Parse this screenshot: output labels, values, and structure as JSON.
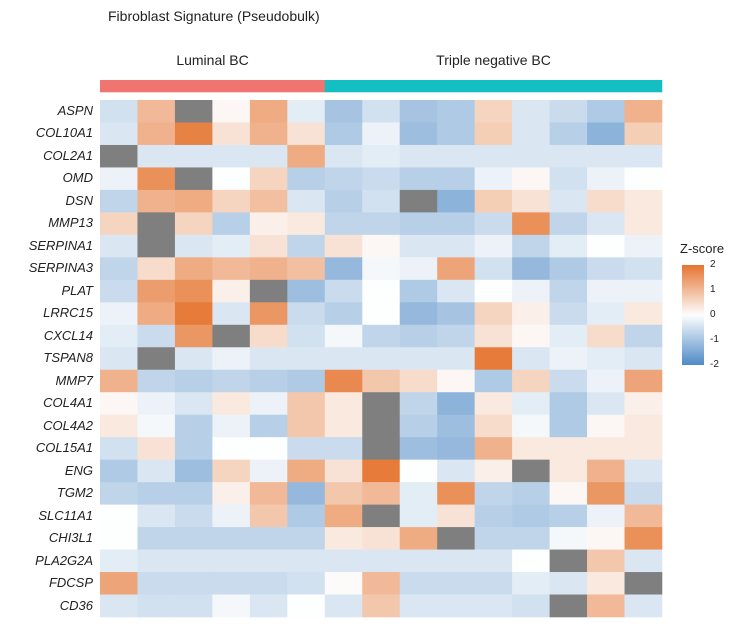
{
  "chart_data": {
    "type": "heatmap",
    "title": "Fibroblast Signature (Pseudobulk)",
    "groups": [
      {
        "name": "Luminal BC",
        "count": 6,
        "color": "#f07470"
      },
      {
        "name": "Triple negative BC",
        "count": 9,
        "color": "#14bfc4"
      }
    ],
    "rows": [
      "ASPN",
      "COL10A1",
      "COL2A1",
      "OMD",
      "DSN",
      "MMP13",
      "SERPINA1",
      "SERPINA3",
      "PLAT",
      "LRRC15",
      "CXCL14",
      "TSPAN8",
      "MMP7",
      "COL4A1",
      "COL4A2",
      "COL15A1",
      "ENG",
      "TGM2",
      "SLC11A1",
      "CHI3L1",
      "PLA2G2A",
      "FDCSP",
      "CD36"
    ],
    "values": [
      [
        -0.5,
        1.0,
        null,
        0.1,
        1.2,
        -0.3,
        -1.0,
        -0.5,
        -1.0,
        -0.9,
        0.6,
        -0.4,
        -0.6,
        -0.9,
        1.1
      ],
      [
        -0.4,
        1.1,
        1.8,
        0.4,
        1.1,
        0.4,
        -0.9,
        -0.2,
        -1.1,
        -0.9,
        0.7,
        -0.4,
        -0.8,
        -1.3,
        0.7
      ],
      [
        null,
        -0.4,
        -0.4,
        -0.4,
        -0.4,
        1.2,
        -0.4,
        -0.3,
        -0.4,
        -0.4,
        -0.4,
        -0.4,
        -0.4,
        -0.4,
        -0.4
      ],
      [
        -0.2,
        1.6,
        null,
        0.0,
        0.6,
        -0.8,
        -0.7,
        -0.6,
        -0.8,
        -0.8,
        -0.2,
        0.1,
        -0.5,
        -0.2,
        0.0
      ],
      [
        -0.7,
        1.1,
        1.2,
        0.6,
        0.9,
        -0.4,
        -0.8,
        -0.5,
        null,
        -1.3,
        0.7,
        0.4,
        -0.4,
        0.5,
        0.3
      ],
      [
        0.6,
        null,
        0.6,
        -0.8,
        0.2,
        0.3,
        -0.7,
        -0.7,
        -0.8,
        -0.8,
        -0.6,
        1.6,
        -0.7,
        -0.4,
        0.3
      ],
      [
        -0.4,
        null,
        -0.4,
        -0.3,
        0.4,
        -0.7,
        0.4,
        0.1,
        -0.4,
        -0.4,
        -0.2,
        -0.7,
        -0.3,
        0.0,
        -0.2
      ],
      [
        -0.7,
        0.5,
        1.2,
        1.0,
        1.1,
        0.9,
        -1.2,
        -0.1,
        -0.2,
        1.3,
        -0.5,
        -1.2,
        -0.9,
        -0.6,
        -0.5
      ],
      [
        -0.6,
        1.4,
        1.6,
        0.2,
        null,
        -1.1,
        -0.6,
        0.0,
        -0.9,
        -0.4,
        0.0,
        -0.2,
        -0.7,
        -0.2,
        -0.2
      ],
      [
        -0.2,
        1.2,
        1.9,
        -0.4,
        1.5,
        -0.6,
        -0.8,
        0.0,
        -1.2,
        -1.0,
        0.6,
        0.2,
        -0.6,
        -0.3,
        0.3
      ],
      [
        -0.3,
        -0.6,
        1.5,
        null,
        0.5,
        -0.5,
        -0.1,
        -0.7,
        -0.8,
        -0.7,
        0.4,
        0.1,
        -0.3,
        0.5,
        -0.7
      ],
      [
        -0.4,
        null,
        -0.4,
        -0.2,
        -0.4,
        -0.4,
        -0.4,
        -0.4,
        -0.4,
        -0.4,
        1.9,
        -0.4,
        -0.2,
        -0.3,
        -0.4
      ],
      [
        1.1,
        -0.7,
        -0.8,
        -0.7,
        -0.8,
        -0.9,
        1.7,
        0.8,
        0.5,
        0.1,
        -0.9,
        0.6,
        -0.6,
        -0.2,
        1.3
      ],
      [
        0.1,
        -0.2,
        -0.4,
        0.3,
        -0.2,
        0.8,
        0.3,
        null,
        -0.7,
        -1.3,
        0.3,
        -0.3,
        -0.9,
        -0.4,
        0.2
      ],
      [
        0.3,
        -0.1,
        -0.8,
        -0.2,
        -0.8,
        0.8,
        0.3,
        null,
        -0.8,
        -1.1,
        0.5,
        -0.1,
        -0.9,
        0.1,
        0.3
      ],
      [
        -0.5,
        0.4,
        -0.8,
        0.0,
        0.0,
        -0.6,
        -0.6,
        null,
        -1.1,
        -1.2,
        1.1,
        0.3,
        0.3,
        0.3,
        0.3
      ],
      [
        -0.9,
        -0.4,
        -1.1,
        0.6,
        -0.2,
        1.2,
        0.4,
        1.9,
        0.0,
        -0.4,
        0.2,
        null,
        0.3,
        1.1,
        -0.4
      ],
      [
        -0.7,
        -0.8,
        -0.8,
        0.2,
        1.0,
        -1.2,
        0.8,
        1.0,
        -0.3,
        1.6,
        -0.7,
        -0.8,
        0.1,
        1.5,
        -0.6
      ],
      [
        0.0,
        -0.4,
        -0.6,
        -0.2,
        0.8,
        -0.9,
        1.2,
        null,
        -0.3,
        0.4,
        -0.8,
        -0.9,
        -0.8,
        -0.2,
        1.0
      ],
      [
        0.0,
        -0.7,
        -0.7,
        -0.7,
        -0.7,
        -0.7,
        0.3,
        0.4,
        1.2,
        null,
        -0.7,
        -0.7,
        -0.1,
        0.1,
        1.6
      ],
      [
        -0.3,
        -0.4,
        -0.4,
        -0.4,
        -0.4,
        -0.4,
        -0.4,
        -0.4,
        -0.4,
        -0.4,
        -0.4,
        0.0,
        null,
        0.8,
        -0.4
      ],
      [
        1.3,
        -0.6,
        -0.6,
        -0.6,
        -0.6,
        -0.5,
        0.05,
        1.0,
        -0.6,
        -0.6,
        -0.6,
        -0.3,
        -0.4,
        0.3,
        null
      ],
      [
        -0.4,
        -0.5,
        -0.5,
        -0.1,
        -0.4,
        0.0,
        -0.4,
        0.8,
        -0.4,
        -0.4,
        -0.4,
        -0.5,
        null,
        1.0,
        -0.4
      ]
    ],
    "legend": {
      "title": "Z-score",
      "ticks": [
        2,
        1,
        0,
        -1,
        -2
      ],
      "tick_labels": [
        "2",
        "1",
        "0",
        "-1",
        "-2"
      ],
      "placement": "right"
    },
    "colors": {
      "high": "#e57430",
      "mid": "#fdfefe",
      "low": "#4f8ac6",
      "na": "#7f7f7f"
    },
    "range": [
      -2,
      2
    ]
  }
}
